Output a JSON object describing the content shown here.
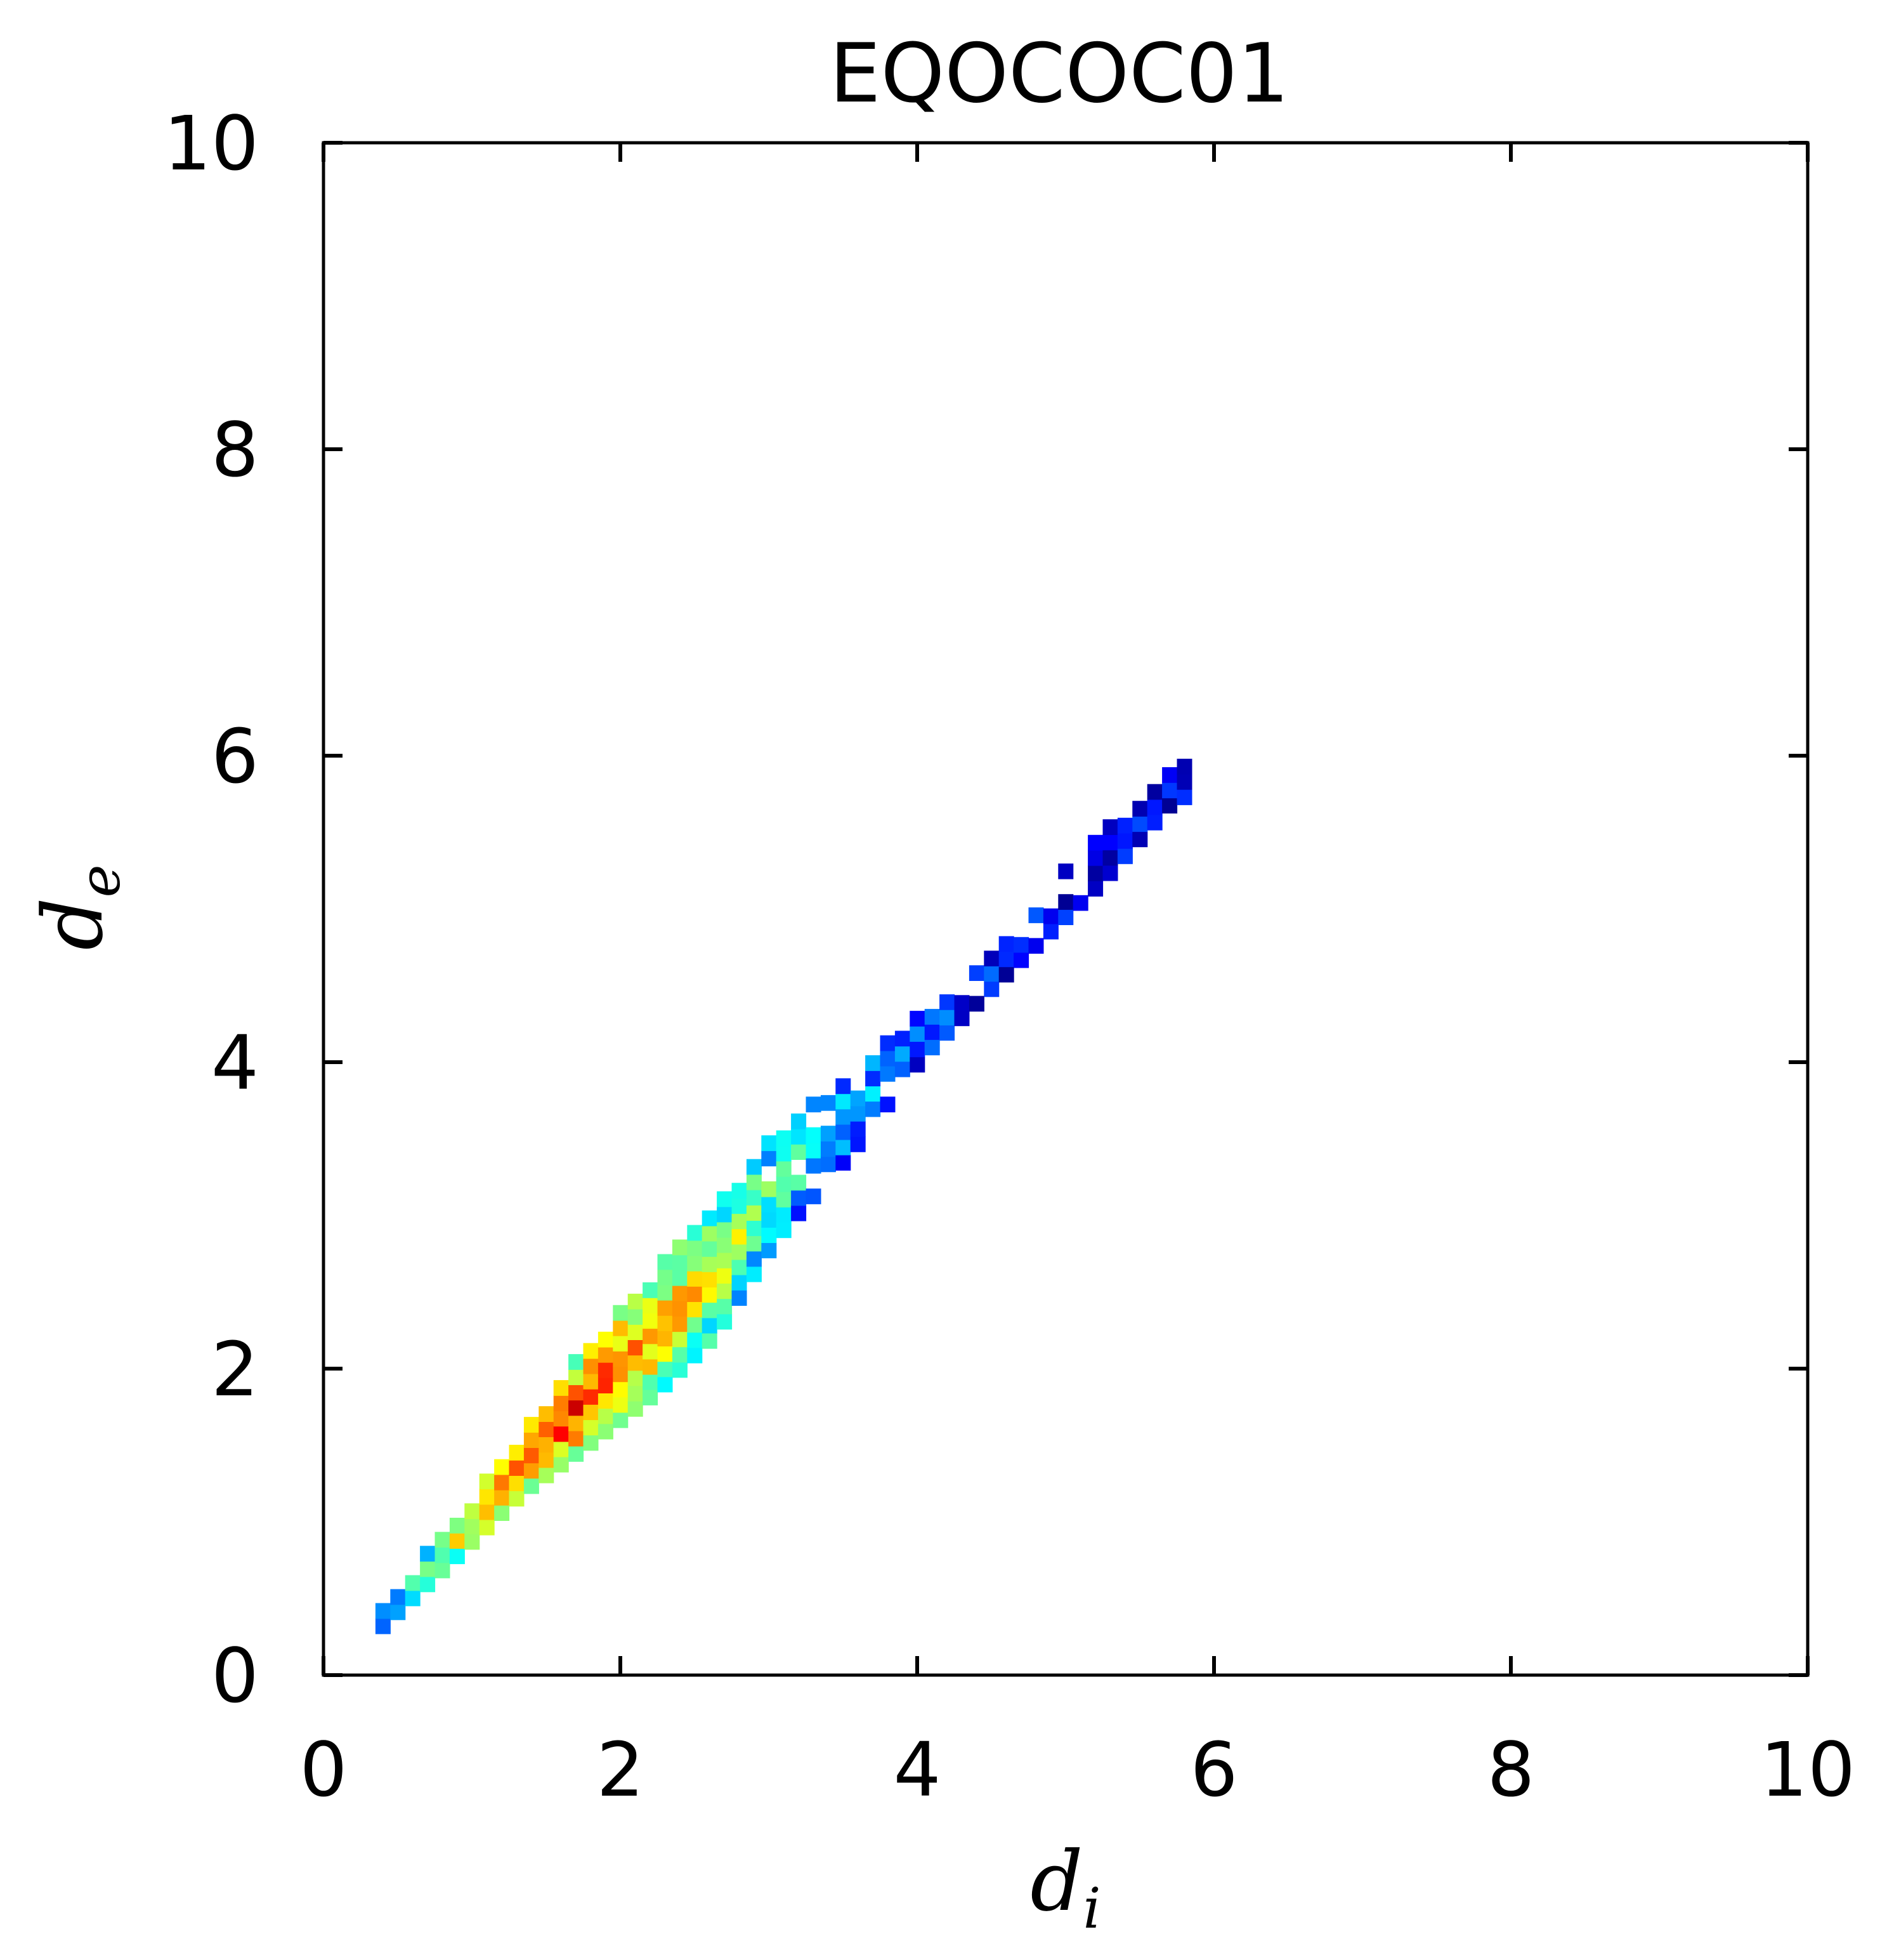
{
  "chart_data": {
    "type": "heatmap",
    "title": "EQOCOC01",
    "xlabel": "d",
    "xlabel_subscript": "i",
    "ylabel": "d",
    "ylabel_subscript": "e",
    "xlim": [
      0,
      10
    ],
    "ylim": [
      0,
      10
    ],
    "xticks": [
      "0",
      "2",
      "4",
      "6",
      "8",
      "10"
    ],
    "yticks": [
      "0",
      "2",
      "4",
      "6",
      "8",
      "10"
    ],
    "grid": false,
    "legend": "none",
    "colormap": "jet",
    "bin_size": 0.1,
    "density_ridge": [
      {
        "x": 0.35,
        "y": 0.35,
        "intensity": 0.25,
        "half_width": 0.08
      },
      {
        "x": 0.8,
        "y": 0.8,
        "intensity": 0.6,
        "half_width": 0.12
      },
      {
        "x": 1.3,
        "y": 1.35,
        "intensity": 0.85,
        "half_width": 0.2
      },
      {
        "x": 1.7,
        "y": 1.75,
        "intensity": 0.9,
        "half_width": 0.32
      },
      {
        "x": 2.2,
        "y": 2.2,
        "intensity": 0.75,
        "half_width": 0.4
      },
      {
        "x": 2.6,
        "y": 2.6,
        "intensity": 0.65,
        "half_width": 0.42
      },
      {
        "x": 3.0,
        "y": 3.15,
        "intensity": 0.45,
        "half_width": 0.35
      },
      {
        "x": 3.5,
        "y": 3.6,
        "intensity": 0.35,
        "half_width": 0.25
      },
      {
        "x": 4.0,
        "y": 4.15,
        "intensity": 0.2,
        "half_width": 0.15
      },
      {
        "x": 4.6,
        "y": 4.7,
        "intensity": 0.12,
        "half_width": 0.13
      },
      {
        "x": 5.2,
        "y": 5.3,
        "intensity": 0.15,
        "half_width": 0.17
      },
      {
        "x": 5.7,
        "y": 5.8,
        "intensity": 0.12,
        "half_width": 0.12
      }
    ],
    "colors": {
      "axis": "#000000",
      "background": "#ffffff"
    }
  }
}
